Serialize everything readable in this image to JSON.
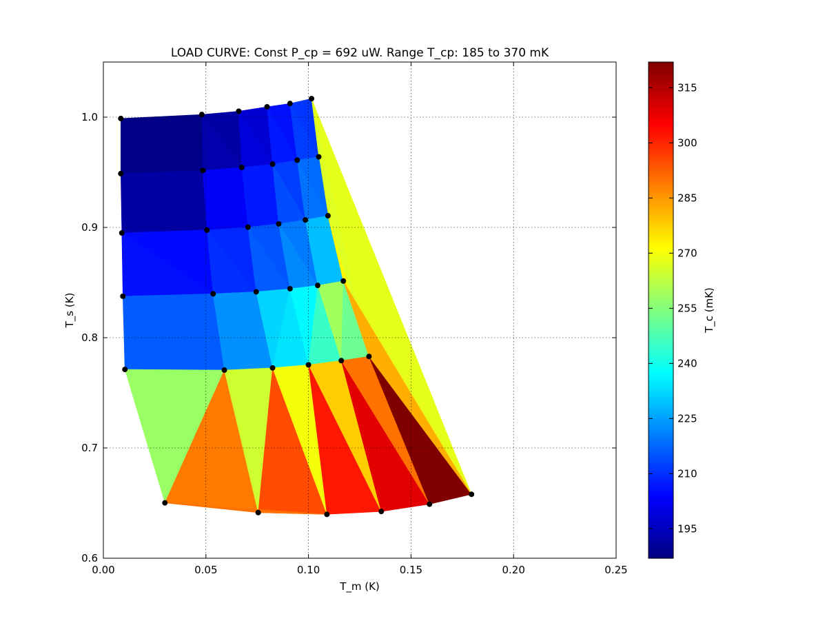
{
  "chart_data": {
    "type": "tripcolor",
    "title": "LOAD CURVE: Const P_cp = 692 uW. Range T_cp: 185 to 370 mK",
    "xlabel": "T_m (K)",
    "ylabel": "T_s (K)",
    "xlim": [
      0.0,
      0.25
    ],
    "ylim": [
      0.6,
      1.05
    ],
    "xticks": [
      0.0,
      0.05,
      0.1,
      0.15,
      0.2,
      0.25
    ],
    "xtick_labels": [
      "0.00",
      "0.05",
      "0.10",
      "0.15",
      "0.20",
      "0.25"
    ],
    "yticks": [
      0.6,
      0.7,
      0.8,
      0.9,
      1.0
    ],
    "ytick_labels": [
      "0.6",
      "0.7",
      "0.8",
      "0.9",
      "1.0"
    ],
    "grid": true,
    "colorbar": {
      "label": "T_c (mK)",
      "colormap": "jet",
      "range": [
        187,
        322
      ],
      "ticks": [
        195,
        210,
        225,
        240,
        255,
        270,
        285,
        300,
        315
      ],
      "tick_labels": [
        "195",
        "210",
        "225",
        "240",
        "255",
        "270",
        "285",
        "300",
        "315"
      ]
    },
    "points": [
      {
        "x": 0.0085,
        "y": 0.9988
      },
      {
        "x": 0.048,
        "y": 1.0024
      },
      {
        "x": 0.066,
        "y": 1.0054
      },
      {
        "x": 0.0798,
        "y": 1.0094
      },
      {
        "x": 0.091,
        "y": 1.0124
      },
      {
        "x": 0.1015,
        "y": 1.0168
      },
      {
        "x": 0.0085,
        "y": 0.9488
      },
      {
        "x": 0.0485,
        "y": 0.9516
      },
      {
        "x": 0.0675,
        "y": 0.9544
      },
      {
        "x": 0.0825,
        "y": 0.9574
      },
      {
        "x": 0.0945,
        "y": 0.961
      },
      {
        "x": 0.105,
        "y": 0.964
      },
      {
        "x": 0.009,
        "y": 0.895
      },
      {
        "x": 0.0505,
        "y": 0.8976
      },
      {
        "x": 0.0705,
        "y": 0.9002
      },
      {
        "x": 0.0855,
        "y": 0.9032
      },
      {
        "x": 0.0985,
        "y": 0.9068
      },
      {
        "x": 0.1095,
        "y": 0.9106
      },
      {
        "x": 0.0095,
        "y": 0.8376
      },
      {
        "x": 0.0535,
        "y": 0.8398
      },
      {
        "x": 0.0745,
        "y": 0.8416
      },
      {
        "x": 0.091,
        "y": 0.8444
      },
      {
        "x": 0.1045,
        "y": 0.8474
      },
      {
        "x": 0.117,
        "y": 0.8514
      },
      {
        "x": 0.0105,
        "y": 0.7712
      },
      {
        "x": 0.059,
        "y": 0.7706
      },
      {
        "x": 0.0825,
        "y": 0.7726
      },
      {
        "x": 0.1,
        "y": 0.7754
      },
      {
        "x": 0.116,
        "y": 0.7792
      },
      {
        "x": 0.1295,
        "y": 0.783
      },
      {
        "x": 0.03,
        "y": 0.6502
      },
      {
        "x": 0.0755,
        "y": 0.6414
      },
      {
        "x": 0.109,
        "y": 0.6398
      },
      {
        "x": 0.1355,
        "y": 0.6424
      },
      {
        "x": 0.159,
        "y": 0.649
      },
      {
        "x": 0.1795,
        "y": 0.658
      }
    ],
    "triangles": [
      {
        "v": [
          0,
          1,
          7
        ],
        "c": 188
      },
      {
        "v": [
          0,
          7,
          6
        ],
        "c": 188
      },
      {
        "v": [
          1,
          2,
          8
        ],
        "c": 192
      },
      {
        "v": [
          1,
          8,
          7
        ],
        "c": 193
      },
      {
        "v": [
          2,
          3,
          9
        ],
        "c": 198
      },
      {
        "v": [
          2,
          9,
          8
        ],
        "c": 199
      },
      {
        "v": [
          3,
          4,
          10
        ],
        "c": 206
      },
      {
        "v": [
          3,
          10,
          9
        ],
        "c": 207
      },
      {
        "v": [
          4,
          5,
          11
        ],
        "c": 211
      },
      {
        "v": [
          4,
          11,
          10
        ],
        "c": 212
      },
      {
        "v": [
          5,
          17,
          11
        ],
        "c": 266
      },
      {
        "v": [
          5,
          29,
          17
        ],
        "c": 267
      },
      {
        "v": [
          5,
          35,
          29
        ],
        "c": 268
      },
      {
        "v": [
          6,
          7,
          13
        ],
        "c": 192
      },
      {
        "v": [
          6,
          13,
          12
        ],
        "c": 192
      },
      {
        "v": [
          7,
          8,
          14
        ],
        "c": 203
      },
      {
        "v": [
          7,
          14,
          13
        ],
        "c": 203
      },
      {
        "v": [
          8,
          9,
          15
        ],
        "c": 207
      },
      {
        "v": [
          8,
          15,
          14
        ],
        "c": 207
      },
      {
        "v": [
          9,
          10,
          16
        ],
        "c": 212
      },
      {
        "v": [
          9,
          16,
          15
        ],
        "c": 214
      },
      {
        "v": [
          10,
          11,
          17
        ],
        "c": 218
      },
      {
        "v": [
          10,
          17,
          16
        ],
        "c": 219
      },
      {
        "v": [
          12,
          13,
          19
        ],
        "c": 205
      },
      {
        "v": [
          12,
          19,
          18
        ],
        "c": 206
      },
      {
        "v": [
          13,
          14,
          20
        ],
        "c": 209
      },
      {
        "v": [
          13,
          20,
          19
        ],
        "c": 210
      },
      {
        "v": [
          14,
          15,
          21
        ],
        "c": 215
      },
      {
        "v": [
          14,
          21,
          20
        ],
        "c": 216
      },
      {
        "v": [
          15,
          16,
          22
        ],
        "c": 220
      },
      {
        "v": [
          15,
          22,
          21
        ],
        "c": 222
      },
      {
        "v": [
          16,
          17,
          23
        ],
        "c": 229
      },
      {
        "v": [
          16,
          23,
          22
        ],
        "c": 229
      },
      {
        "v": [
          17,
          29,
          23
        ],
        "c": 272
      },
      {
        "v": [
          18,
          19,
          24
        ],
        "c": 216
      },
      {
        "v": [
          19,
          25,
          24
        ],
        "c": 216
      },
      {
        "v": [
          19,
          20,
          26
        ],
        "c": 223
      },
      {
        "v": [
          19,
          26,
          25
        ],
        "c": 223
      },
      {
        "v": [
          20,
          21,
          26
        ],
        "c": 232
      },
      {
        "v": [
          21,
          27,
          26
        ],
        "c": 234
      },
      {
        "v": [
          21,
          22,
          27
        ],
        "c": 237
      },
      {
        "v": [
          22,
          28,
          27
        ],
        "c": 245
      },
      {
        "v": [
          22,
          23,
          28
        ],
        "c": 259
      },
      {
        "v": [
          23,
          29,
          28
        ],
        "c": 252
      },
      {
        "v": [
          24,
          25,
          30
        ],
        "c": 258
      },
      {
        "v": [
          25,
          31,
          30
        ],
        "c": 289
      },
      {
        "v": [
          25,
          26,
          31
        ],
        "c": 265
      },
      {
        "v": [
          26,
          32,
          31
        ],
        "c": 295
      },
      {
        "v": [
          26,
          27,
          32
        ],
        "c": 270
      },
      {
        "v": [
          27,
          33,
          32
        ],
        "c": 302
      },
      {
        "v": [
          27,
          28,
          33
        ],
        "c": 278
      },
      {
        "v": [
          28,
          34,
          33
        ],
        "c": 309
      },
      {
        "v": [
          28,
          29,
          34
        ],
        "c": 290
      },
      {
        "v": [
          29,
          35,
          34
        ],
        "c": 322
      },
      {
        "v": [
          29,
          35,
          23
        ],
        "c": 282
      },
      {
        "v": [
          30,
          31,
          32
        ],
        "c": 290
      }
    ]
  }
}
